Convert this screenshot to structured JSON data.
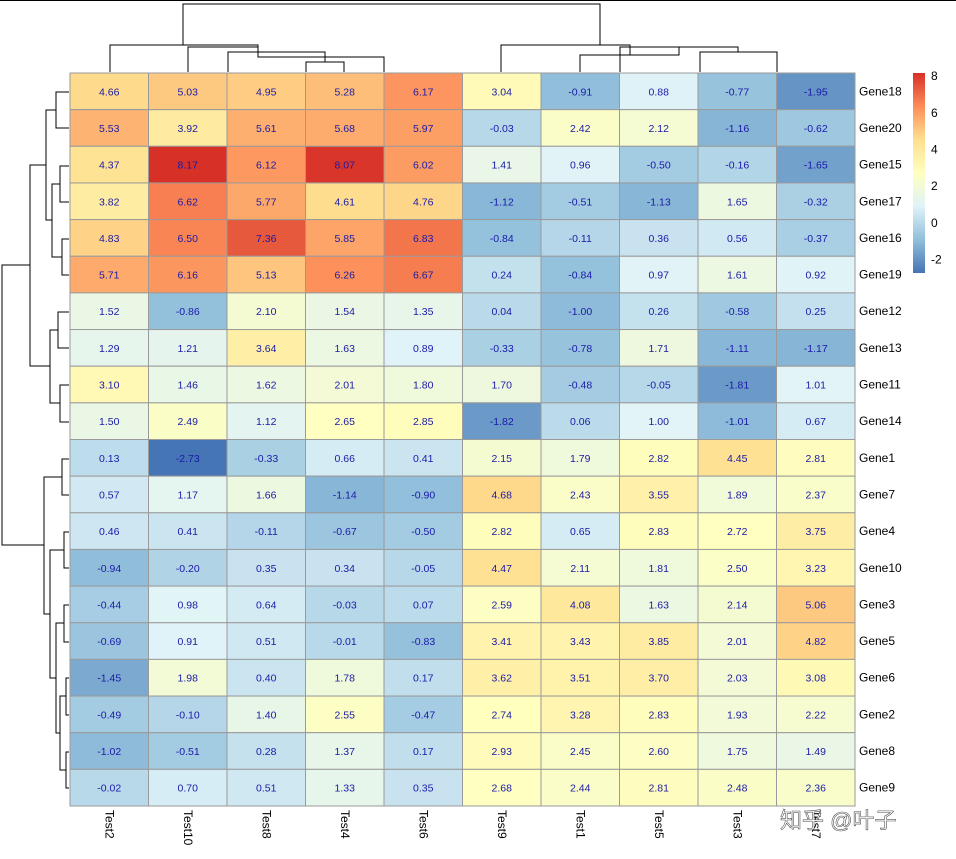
{
  "chart_data": {
    "type": "heatmap",
    "title": "",
    "columns": [
      "Test2",
      "Test10",
      "Test8",
      "Test4",
      "Test6",
      "Test9",
      "Test1",
      "Test5",
      "Test3",
      "Test7"
    ],
    "rows": [
      "Gene18",
      "Gene20",
      "Gene15",
      "Gene17",
      "Gene16",
      "Gene19",
      "Gene12",
      "Gene13",
      "Gene11",
      "Gene14",
      "Gene1",
      "Gene7",
      "Gene4",
      "Gene10",
      "Gene3",
      "Gene5",
      "Gene6",
      "Gene2",
      "Gene8",
      "Gene9"
    ],
    "values": [
      [
        4.66,
        5.03,
        4.95,
        5.28,
        6.17,
        3.04,
        -0.91,
        0.88,
        -0.77,
        -1.95
      ],
      [
        5.53,
        3.92,
        5.61,
        5.68,
        5.97,
        -0.03,
        2.42,
        2.12,
        -1.16,
        -0.62
      ],
      [
        4.37,
        8.17,
        6.12,
        8.07,
        6.02,
        1.41,
        0.96,
        -0.5,
        -0.16,
        -1.65
      ],
      [
        3.82,
        6.62,
        5.77,
        4.61,
        4.76,
        -1.12,
        -0.51,
        -1.13,
        1.65,
        -0.32
      ],
      [
        4.83,
        6.5,
        7.36,
        5.85,
        6.83,
        -0.84,
        -0.11,
        0.36,
        0.56,
        -0.37
      ],
      [
        5.71,
        6.16,
        5.13,
        6.26,
        6.67,
        0.24,
        -0.84,
        0.97,
        1.61,
        0.92
      ],
      [
        1.52,
        -0.86,
        2.1,
        1.54,
        1.35,
        0.04,
        -1.0,
        0.26,
        -0.58,
        0.25
      ],
      [
        1.29,
        1.21,
        3.64,
        1.63,
        0.89,
        -0.33,
        -0.78,
        1.71,
        -1.11,
        -1.17
      ],
      [
        3.1,
        1.46,
        1.62,
        2.01,
        1.8,
        1.7,
        -0.48,
        -0.05,
        -1.81,
        1.01
      ],
      [
        1.5,
        2.49,
        1.12,
        2.65,
        2.85,
        -1.82,
        0.06,
        1.0,
        -1.01,
        0.67
      ],
      [
        0.13,
        -2.73,
        -0.33,
        0.66,
        0.41,
        2.15,
        1.79,
        2.82,
        4.45,
        2.81
      ],
      [
        0.57,
        1.17,
        1.66,
        -1.14,
        -0.9,
        4.68,
        2.43,
        3.55,
        1.89,
        2.37
      ],
      [
        0.46,
        0.41,
        -0.11,
        -0.67,
        -0.5,
        2.82,
        0.65,
        2.83,
        2.72,
        3.75
      ],
      [
        -0.94,
        -0.2,
        0.35,
        0.34,
        -0.05,
        4.47,
        2.11,
        1.81,
        2.5,
        3.23
      ],
      [
        -0.44,
        0.98,
        0.64,
        -0.03,
        0.07,
        2.59,
        4.08,
        1.63,
        2.14,
        5.06
      ],
      [
        -0.69,
        0.91,
        0.51,
        -0.01,
        -0.83,
        3.41,
        3.43,
        3.85,
        2.01,
        4.82
      ],
      [
        -1.45,
        1.98,
        0.4,
        1.78,
        0.17,
        3.62,
        3.51,
        3.7,
        2.03,
        3.08
      ],
      [
        -0.49,
        -0.1,
        1.4,
        2.55,
        -0.47,
        2.74,
        3.28,
        2.83,
        1.93,
        2.22
      ],
      [
        -1.02,
        -0.51,
        0.28,
        1.37,
        0.17,
        2.93,
        2.45,
        2.6,
        1.75,
        1.49
      ],
      [
        -0.02,
        0.7,
        0.51,
        1.33,
        0.35,
        2.68,
        2.44,
        2.81,
        2.48,
        2.36
      ]
    ],
    "color_scale": {
      "min": -2.73,
      "max": 8.17,
      "stops": [
        "#4575b4",
        "#91bfdb",
        "#e0f3f8",
        "#ffffbf",
        "#fee090",
        "#fc8d59",
        "#d73027"
      ]
    },
    "legend": {
      "ticks": [
        "8",
        "6",
        "4",
        "2",
        "0",
        "-2"
      ],
      "tick_values": [
        8,
        6,
        4,
        2,
        0,
        -2
      ],
      "placement": "top-right"
    },
    "column_dendrogram": true,
    "row_dendrogram": true,
    "cell_number_color": "#1a1aa8"
  },
  "watermark": "知乎 @叶子"
}
